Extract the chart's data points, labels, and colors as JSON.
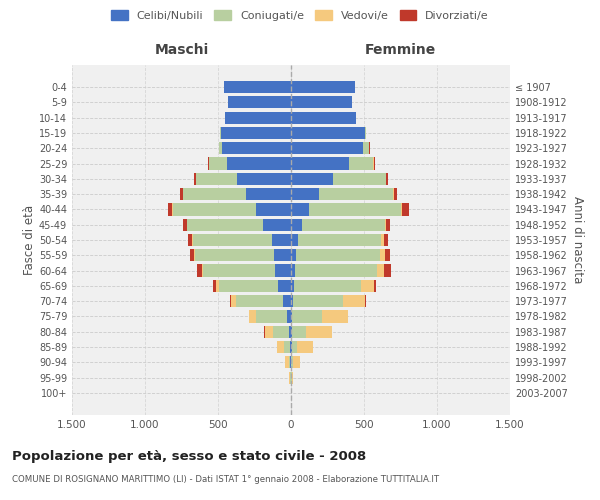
{
  "age_groups": [
    "0-4",
    "5-9",
    "10-14",
    "15-19",
    "20-24",
    "25-29",
    "30-34",
    "35-39",
    "40-44",
    "45-49",
    "50-54",
    "55-59",
    "60-64",
    "65-69",
    "70-74",
    "75-79",
    "80-84",
    "85-89",
    "90-94",
    "95-99",
    "100+"
  ],
  "birth_years": [
    "2003-2007",
    "1998-2002",
    "1993-1997",
    "1988-1992",
    "1983-1987",
    "1978-1982",
    "1973-1977",
    "1968-1972",
    "1963-1967",
    "1958-1962",
    "1953-1957",
    "1948-1952",
    "1943-1947",
    "1938-1942",
    "1933-1937",
    "1928-1932",
    "1923-1927",
    "1918-1922",
    "1913-1917",
    "1908-1912",
    "≤ 1907"
  ],
  "maschi": {
    "celibi": [
      460,
      430,
      450,
      480,
      470,
      440,
      370,
      310,
      240,
      190,
      130,
      115,
      110,
      90,
      55,
      30,
      15,
      8,
      4,
      2,
      0
    ],
    "coniugati": [
      0,
      0,
      0,
      3,
      20,
      120,
      280,
      430,
      570,
      520,
      540,
      540,
      490,
      400,
      320,
      210,
      110,
      40,
      12,
      4,
      0
    ],
    "vedovi": [
      0,
      0,
      0,
      0,
      0,
      2,
      3,
      3,
      4,
      5,
      6,
      8,
      12,
      25,
      35,
      45,
      55,
      45,
      22,
      5,
      0
    ],
    "divorziati": [
      0,
      0,
      0,
      0,
      0,
      4,
      8,
      14,
      30,
      22,
      28,
      32,
      32,
      18,
      8,
      4,
      2,
      0,
      0,
      0,
      0
    ]
  },
  "femmine": {
    "nubili": [
      440,
      415,
      445,
      510,
      490,
      400,
      290,
      190,
      120,
      72,
      46,
      36,
      30,
      22,
      14,
      9,
      5,
      4,
      3,
      2,
      0
    ],
    "coniugate": [
      0,
      0,
      0,
      5,
      45,
      165,
      360,
      510,
      630,
      570,
      570,
      575,
      560,
      455,
      340,
      200,
      95,
      35,
      8,
      2,
      0
    ],
    "vedove": [
      0,
      0,
      0,
      0,
      0,
      3,
      4,
      5,
      8,
      12,
      18,
      30,
      50,
      90,
      150,
      180,
      180,
      110,
      48,
      10,
      2
    ],
    "divorziate": [
      0,
      0,
      0,
      0,
      3,
      4,
      8,
      22,
      50,
      22,
      28,
      36,
      45,
      18,
      12,
      4,
      2,
      0,
      0,
      0,
      0
    ]
  },
  "colors": {
    "celibi": "#4472c4",
    "coniugati": "#b8cfa0",
    "vedovi": "#f5c97e",
    "divorziati": "#c0392b"
  },
  "title": "Popolazione per età, sesso e stato civile - 2008",
  "subtitle": "COMUNE DI ROSIGNANO MARITTIMO (LI) - Dati ISTAT 1° gennaio 2008 - Elaborazione TUTTITALIA.IT",
  "ylabel_left": "Fasce di età",
  "ylabel_right": "Anni di nascita",
  "xlabel_maschi": "Maschi",
  "xlabel_femmine": "Femmine",
  "xlim": 1500,
  "background_color": "#ffffff",
  "plot_bg": "#f0f0f0",
  "grid_color": "#cccccc"
}
